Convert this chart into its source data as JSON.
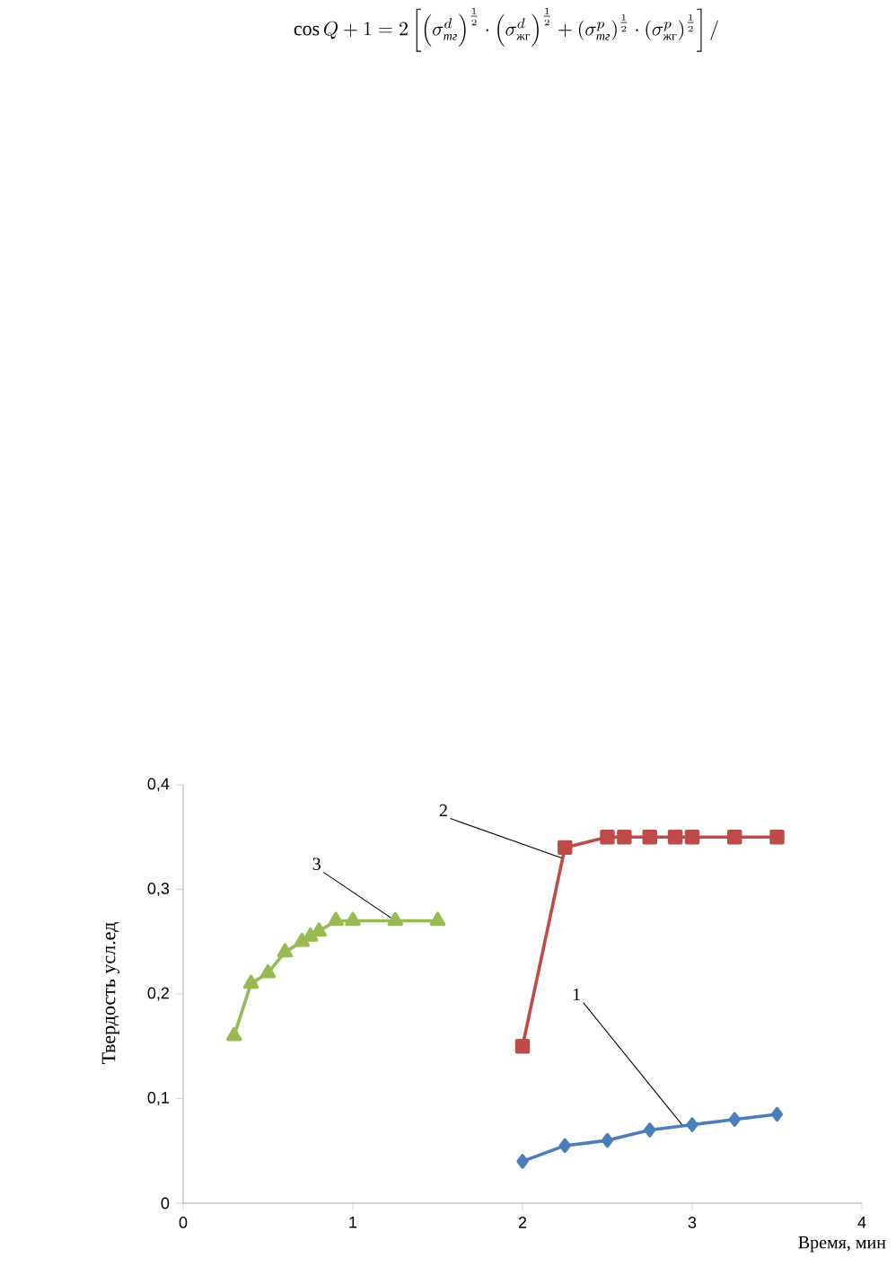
{
  "chart_data": {
    "type": "line",
    "xlabel": "Время, мин",
    "ylabel": "Твердость усл.ед",
    "xlim": [
      0,
      4
    ],
    "ylim": [
      0,
      0.4
    ],
    "xticks": [
      0,
      1,
      2,
      3,
      4
    ],
    "yticks": [
      0,
      {
        "value": 0.1,
        "label": "0,1"
      },
      {
        "value": 0.2,
        "label": "0,2"
      },
      {
        "value": 0.3,
        "label": "0,3"
      },
      {
        "value": 0.4,
        "label": "0,4"
      }
    ],
    "series": [
      {
        "color": "#4a7ebb",
        "marker": "diamond",
        "x": [
          2,
          2.25,
          2.5,
          2.75,
          3,
          3.25,
          3.5
        ],
        "values": [
          0.04,
          0.055,
          0.06,
          0.07,
          0.075,
          0.08,
          0.085
        ]
      },
      {
        "color": "#be4b48",
        "marker": "square",
        "x": [
          2,
          2.25,
          2.5,
          2.6,
          2.75,
          2.9,
          3,
          3.25,
          3.5
        ],
        "values": [
          0.15,
          0.34,
          0.35,
          0.35,
          0.35,
          0.35,
          0.35,
          0.35,
          0.35
        ]
      },
      {
        "color": "#98b954",
        "marker": "triangle",
        "x": [
          0.3,
          0.4,
          0.5,
          0.6,
          0.7,
          0.75,
          0.8,
          0.9,
          1.0,
          1.25,
          1.5
        ],
        "values": [
          0.16,
          0.21,
          0.22,
          0.24,
          0.25,
          0.255,
          0.26,
          0.27,
          0.27,
          0.27,
          0.27
        ]
      }
    ],
    "annotations": [
      "\\cos Q+1=2\\left[\\left(\\sigma^{d}_{\\hbox{\\scriptsize\\itshape тг}}\\right)^{\\frac{1}{2}}\\cdot\\left(\\sigma^{d}_{\\hbox{\\scriptsize жг}}\\right)^{\\frac{1}{2}}+\\left(\\sigma^{p}_{\\hbox{\\scriptsize\\itshape тг}}\\right)^{\\frac{1}{2}}\\cdot\\left(\\sigma^{p}_{\\hbox{\\scriptsize жг}}\\right)^{\\frac{1}{2}}\\right]/",
      {
        "text": "1",
        "x": 2.94,
        "y": 0.075
      },
      {
        "text": "2",
        "x": 2.23,
        "y": 0.33
      },
      {
        "text": "3",
        "x": 1.25,
        "y": 0.27
      }
    ]
  }
}
